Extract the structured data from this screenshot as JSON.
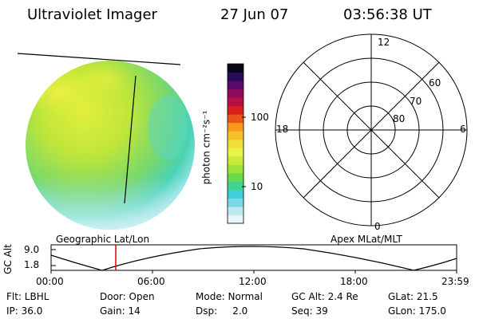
{
  "header": {
    "title": "Ultraviolet Imager",
    "date": "27 Jun 07",
    "time": "03:56:38 UT"
  },
  "colorbar": {
    "unit_label": "photon cm⁻²s⁻¹",
    "tick_100": "100",
    "tick_10": "10",
    "colors": [
      "#e6f5f8",
      "#bde8ef",
      "#7ad8e4",
      "#3fcfdb",
      "#40d58a",
      "#6ad84a",
      "#9ee23a",
      "#c8ea3a",
      "#e8f24a",
      "#f0df3a",
      "#f6c02a",
      "#f69a1e",
      "#e8541a",
      "#d8201c",
      "#b81044",
      "#8c0c5a",
      "#5a0a6e",
      "#2a0a5a",
      "#080818"
    ]
  },
  "polar": {
    "mlt_top": "12",
    "mlt_left": "18",
    "mlt_right": "6",
    "mlt_bottom": "0",
    "lat_60": "60",
    "lat_70": "70",
    "lat_80": "80"
  },
  "timeline": {
    "left_title": "Geographic Lat/Lon",
    "right_title": "Apex MLat/MLT",
    "y_label": "GC Alt",
    "y_max": "9.0",
    "y_min": "1.8",
    "ticks": [
      "00:00",
      "06:00",
      "12:00",
      "18:00",
      "23:59"
    ]
  },
  "status": {
    "flt": "Flt: LBHL",
    "door": "Door: Open",
    "mode": "Mode: Normal",
    "gc_alt": "GC Alt: 2.4 Re",
    "glat": "GLat:  21.5",
    "ip": "IP: 36.0",
    "gain": "Gain: 14",
    "dsp": "Dsp:     2.0",
    "seq": "Seq: 39",
    "glon": "GLon: 175.0"
  },
  "colors": {
    "marker": "#e00000"
  }
}
